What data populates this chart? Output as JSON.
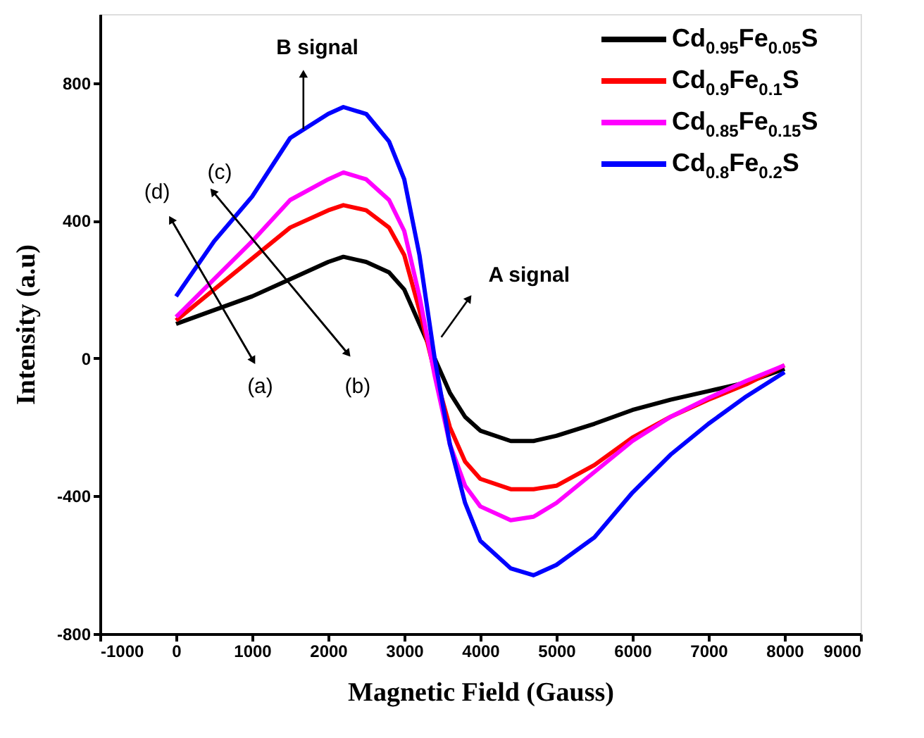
{
  "chart_data": {
    "type": "line",
    "xlabel": "Magnetic Field (Gauss)",
    "ylabel": "Intensity (a.u)",
    "xlim": [
      -1000,
      9000
    ],
    "xticks": [
      -1000,
      0,
      1000,
      2000,
      3000,
      4000,
      5000,
      6000,
      7000,
      8000,
      9000
    ],
    "ylim": [
      -800,
      1000
    ],
    "yticks": [
      -800,
      -400,
      0,
      400,
      800
    ],
    "grid": false,
    "legend": "top right",
    "marker": "none",
    "line_style": "solid",
    "x": [
      0,
      500,
      1000,
      1500,
      2000,
      2200,
      2500,
      2800,
      3000,
      3200,
      3400,
      3600,
      3800,
      4000,
      4400,
      4700,
      5000,
      5500,
      6000,
      6500,
      7000,
      7500,
      8000
    ],
    "series": [
      {
        "name": "Cd$_{0.95}$Fe$_{0.05}$S",
        "color": "#000000",
        "values": [
          100,
          140,
          180,
          230,
          280,
          295,
          280,
          250,
          200,
          100,
          0,
          -100,
          -170,
          -210,
          -240,
          -240,
          -225,
          -190,
          -150,
          -120,
          -95,
          -70,
          -30
        ]
      },
      {
        "name": "Cd$_{0.9}$Fe$_{0.1}$S",
        "color": "#ff0000",
        "values": [
          110,
          200,
          290,
          380,
          430,
          445,
          430,
          380,
          300,
          140,
          -40,
          -200,
          -300,
          -350,
          -380,
          -380,
          -370,
          -310,
          -230,
          -170,
          -120,
          -75,
          -20
        ]
      },
      {
        "name": "Cd$_{0.85}$Fe$_{0.15}$S",
        "color": "#ff00ff",
        "values": [
          120,
          230,
          340,
          460,
          520,
          540,
          520,
          460,
          370,
          180,
          -50,
          -250,
          -370,
          -430,
          -470,
          -460,
          -420,
          -330,
          -240,
          -170,
          -115,
          -65,
          -20
        ]
      },
      {
        "name": "Cd$_{0.8}$Fe$_{0.2}$S",
        "color": "#0000ff",
        "values": [
          180,
          340,
          470,
          640,
          710,
          730,
          710,
          630,
          520,
          300,
          0,
          -250,
          -420,
          -530,
          -610,
          -630,
          -600,
          -520,
          -390,
          -280,
          -190,
          -110,
          -40
        ]
      }
    ],
    "annotations": [
      "B signal",
      "A signal",
      "(a)",
      "(b)",
      "(c)",
      "(d)"
    ]
  }
}
